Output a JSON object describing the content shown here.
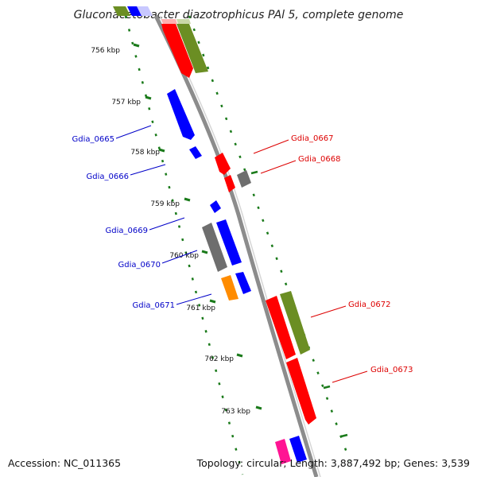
{
  "title": "Gluconacetobacter diazotrophicus PAl 5, complete genome",
  "footer": {
    "accession": "Accession: NC_011365",
    "topology": "Topology: circular; Length: 3,887,492 bp; Genes: 3,539"
  },
  "colors": {
    "backbone": "#8c8c8c",
    "tick": "#1a7a1a",
    "blue_label": "#0000c8",
    "red_label": "#dd0000",
    "gene_red": "#ff0000",
    "gene_blue": "#0000ff",
    "gene_olive": "#6b8e23",
    "gene_gray": "#6e6e6e",
    "gene_orange": "#ff8c00",
    "gene_pink": "#ff1493"
  },
  "ticks": [
    {
      "label": "756 kbp"
    },
    {
      "label": "757 kbp"
    },
    {
      "label": "758 kbp"
    },
    {
      "label": "759 kbp"
    },
    {
      "label": "760 kbp"
    },
    {
      "label": "761 kbp"
    },
    {
      "label": "762 kbp"
    },
    {
      "label": "763 kbp"
    }
  ],
  "gene_labels_left": [
    {
      "text": "Gdia_0665"
    },
    {
      "text": "Gdia_0666"
    },
    {
      "text": "Gdia_0669"
    },
    {
      "text": "Gdia_0670"
    },
    {
      "text": "Gdia_0671"
    }
  ],
  "gene_labels_right": [
    {
      "text": "Gdia_0667"
    },
    {
      "text": "Gdia_0668"
    },
    {
      "text": "Gdia_0672"
    },
    {
      "text": "Gdia_0673"
    }
  ]
}
